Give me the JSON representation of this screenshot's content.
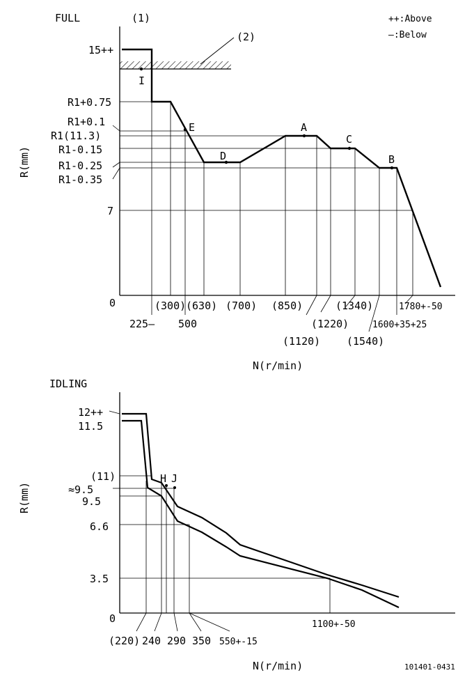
{
  "chart_data": [
    {
      "type": "line",
      "title": "FULL",
      "xlabel": "N(r/min)",
      "ylabel": "R(mm)",
      "legend": [
        "++:Above",
        "—:Below"
      ],
      "annotations": {
        "note1": "(1)",
        "note2": "(2)"
      },
      "y_labels": [
        "15++",
        "R1+0.75",
        "R1+0.1",
        "R1(11.3)",
        "R1-0.15",
        "R1-0.25",
        "R1-0.35",
        "7",
        "0"
      ],
      "x_labels": [
        "225—",
        "(300)",
        "500",
        "(630)",
        "(700)",
        "(850)",
        "(1120)",
        "(1220)",
        "(1340)",
        "(1540)",
        "1600+35+25",
        "1780+-50"
      ],
      "points": {
        "I": "I",
        "E": "E",
        "D": "D",
        "A": "A",
        "C": "C",
        "B": "B"
      },
      "series": [
        {
          "name": "full-load-curve",
          "x": [
            175,
            218,
            218,
            245,
            293,
            345,
            410,
            455,
            475,
            510,
            545,
            570,
            633
          ],
          "y": [
            71,
            71,
            146,
            146,
            233,
            233,
            195,
            195,
            213,
            213,
            241,
            241,
            412
          ]
        }
      ]
    },
    {
      "type": "line",
      "title": "IDLING",
      "xlabel": "N(r/min)",
      "ylabel": "R(mm)",
      "y_labels": [
        "12++",
        "11.5",
        "(11)",
        "≈9.5",
        "9.5",
        "6.6",
        "3.5",
        "0"
      ],
      "x_labels": [
        "(220)",
        "240",
        "290",
        "350",
        "550+-15",
        "1100+-50"
      ],
      "points": {
        "H": "H",
        "J": "J"
      },
      "footer": "101401-0431",
      "series": [
        {
          "name": "idling-upper",
          "x": [
            175,
            210,
            218,
            232,
            255,
            290,
            325,
            345,
            470,
            520,
            573
          ],
          "y": [
            594,
            594,
            688,
            693,
            727,
            743,
            765,
            782,
            825,
            840,
            857
          ]
        },
        {
          "name": "idling-lower",
          "x": [
            175,
            203,
            212,
            232,
            255,
            290,
            325,
            345,
            470,
            520,
            573
          ],
          "y": [
            604,
            604,
            700,
            712,
            748,
            764,
            785,
            798,
            830,
            847,
            872
          ]
        }
      ]
    }
  ]
}
